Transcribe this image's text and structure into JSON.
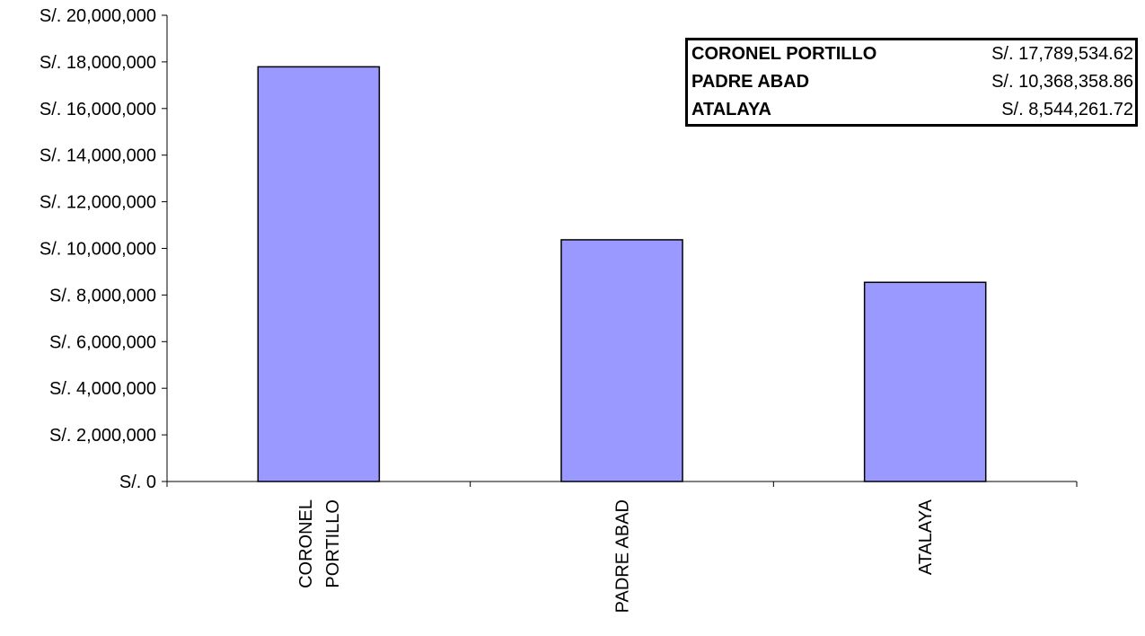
{
  "chart_data": {
    "type": "bar",
    "title": "",
    "xlabel": "",
    "ylabel": "",
    "categories": [
      "CORONEL PORTILLO",
      "PADRE ABAD",
      "ATALAYA"
    ],
    "category_label_lines": [
      [
        "CORONEL",
        "PORTILLO"
      ],
      [
        "PADRE ABAD"
      ],
      [
        "ATALAYA"
      ]
    ],
    "values": [
      17789534.62,
      10368358.86,
      8544261.72
    ],
    "ylim": [
      0,
      20000000
    ],
    "yticks": [
      0,
      2000000,
      4000000,
      6000000,
      8000000,
      10000000,
      12000000,
      14000000,
      16000000,
      18000000,
      20000000
    ],
    "ytick_labels": [
      "S/. 0",
      "S/. 2,000,000",
      "S/. 4,000,000",
      "S/. 6,000,000",
      "S/. 8,000,000",
      "S/. 10,000,000",
      "S/. 12,000,000",
      "S/. 14,000,000",
      "S/. 16,000,000",
      "S/. 18,000,000",
      "S/. 20,000,000"
    ],
    "grid": false,
    "bar_color": "#9999ff",
    "bar_edge_color": "#000000",
    "data_table": {
      "position": "top-right",
      "rows": [
        {
          "label": "CORONEL PORTILLO",
          "value": "S/. 17,789,534.62"
        },
        {
          "label": "PADRE ABAD",
          "value": "S/. 10,368,358.86"
        },
        {
          "label": "ATALAYA",
          "value": "S/. 8,544,261.72"
        }
      ]
    }
  }
}
